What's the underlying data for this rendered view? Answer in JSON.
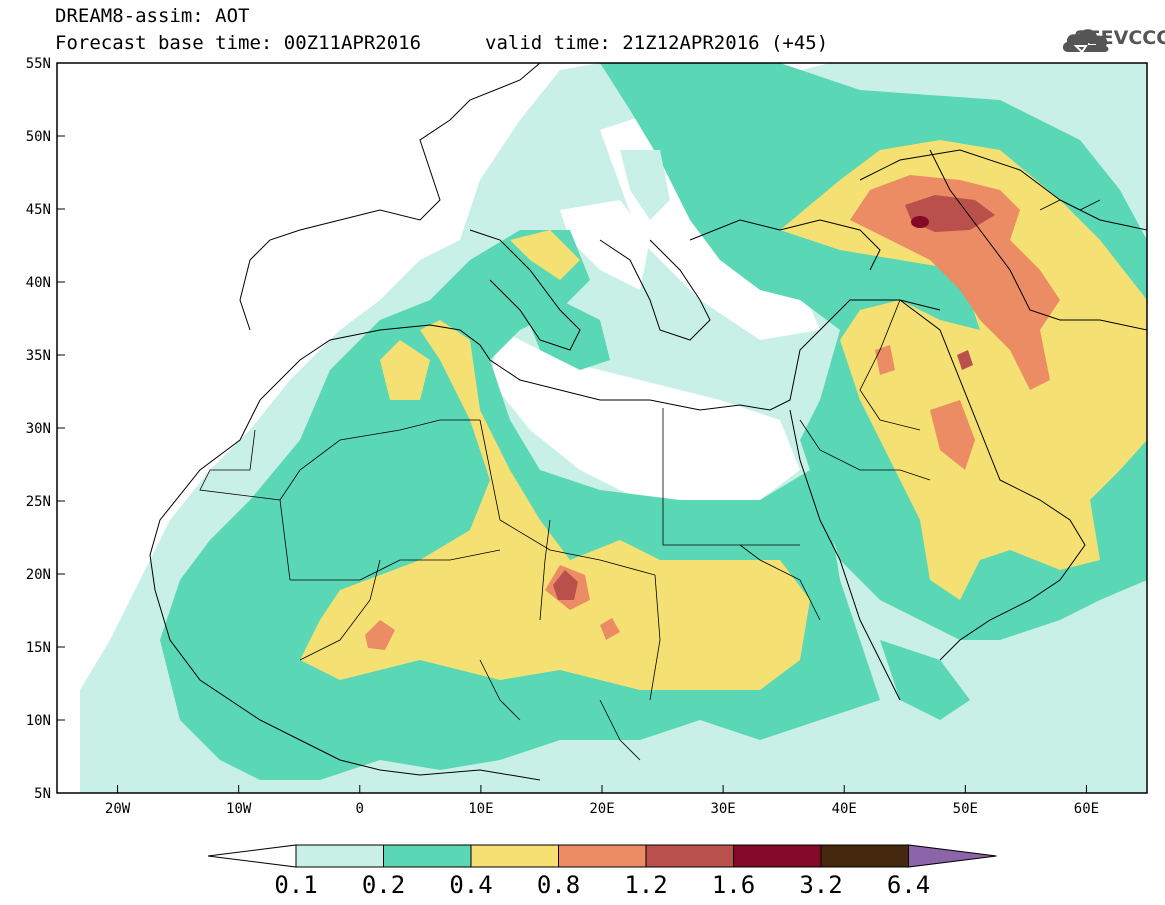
{
  "header": {
    "title_line1": "DREAM8-assim: AOT",
    "title_line2": "Forecast base time: 00Z11APR2016",
    "valid_time": "valid time: 21Z12APR2016 (+45)",
    "logo_text": "SEEVCCC"
  },
  "map": {
    "projection": "cylindrical equidistant",
    "lon_range": [
      -25,
      65
    ],
    "lat_range": [
      5,
      55
    ],
    "lat_ticks": [
      "5N",
      "10N",
      "15N",
      "20N",
      "25N",
      "30N",
      "35N",
      "40N",
      "45N",
      "50N",
      "55N"
    ],
    "lon_ticks": [
      "20W",
      "10W",
      "0",
      "10E",
      "20E",
      "30E",
      "40E",
      "50E",
      "60E"
    ]
  },
  "colorbar": {
    "labels": [
      "0.1",
      "0.2",
      "0.4",
      "0.8",
      "1.2",
      "1.6",
      "3.2",
      "6.4"
    ],
    "colors": [
      "#c8f0e6",
      "#5ad7b4",
      "#f5e173",
      "#eb8c64",
      "#b9504b",
      "#820a28",
      "#46280f",
      "#8c64aa"
    ],
    "below_min_color": "#ffffff"
  }
}
